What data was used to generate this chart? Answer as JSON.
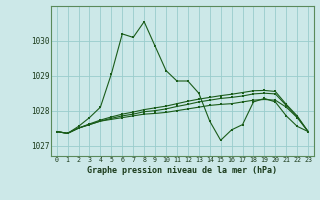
{
  "title": "Graphe pression niveau de la mer (hPa)",
  "bg_color": "#cce8e8",
  "grid_color": "#99cccc",
  "line_color": "#1a5c1a",
  "border_color": "#5a8a5a",
  "xlim": [
    -0.5,
    23.5
  ],
  "ylim": [
    1026.7,
    1031.0
  ],
  "yticks": [
    1027,
    1028,
    1029,
    1030
  ],
  "xticks": [
    0,
    1,
    2,
    3,
    4,
    5,
    6,
    7,
    8,
    9,
    10,
    11,
    12,
    13,
    14,
    15,
    16,
    17,
    18,
    19,
    20,
    21,
    22,
    23
  ],
  "series": [
    [
      1027.4,
      1027.35,
      1027.55,
      1027.8,
      1028.1,
      1029.05,
      1030.2,
      1030.1,
      1030.55,
      1029.85,
      1029.15,
      1028.85,
      1028.85,
      1028.5,
      1027.7,
      1027.15,
      1027.45,
      1027.6,
      1028.25,
      1028.35,
      1028.25,
      1027.85,
      1027.55,
      1027.4
    ],
    [
      1027.4,
      1027.35,
      1027.5,
      1027.6,
      1027.7,
      1027.75,
      1027.8,
      1027.85,
      1027.9,
      1027.92,
      1027.95,
      1028.0,
      1028.05,
      1028.1,
      1028.15,
      1028.18,
      1028.2,
      1028.25,
      1028.3,
      1028.32,
      1028.3,
      1028.1,
      1027.8,
      1027.4
    ],
    [
      1027.4,
      1027.35,
      1027.5,
      1027.6,
      1027.7,
      1027.78,
      1027.85,
      1027.9,
      1027.97,
      1028.0,
      1028.05,
      1028.12,
      1028.18,
      1028.25,
      1028.3,
      1028.35,
      1028.38,
      1028.42,
      1028.48,
      1028.5,
      1028.48,
      1028.15,
      1027.82,
      1027.4
    ],
    [
      1027.4,
      1027.35,
      1027.5,
      1027.62,
      1027.73,
      1027.82,
      1027.9,
      1027.96,
      1028.03,
      1028.08,
      1028.13,
      1028.2,
      1028.27,
      1028.33,
      1028.38,
      1028.43,
      1028.47,
      1028.52,
      1028.57,
      1028.58,
      1028.55,
      1028.18,
      1027.85,
      1027.4
    ]
  ]
}
